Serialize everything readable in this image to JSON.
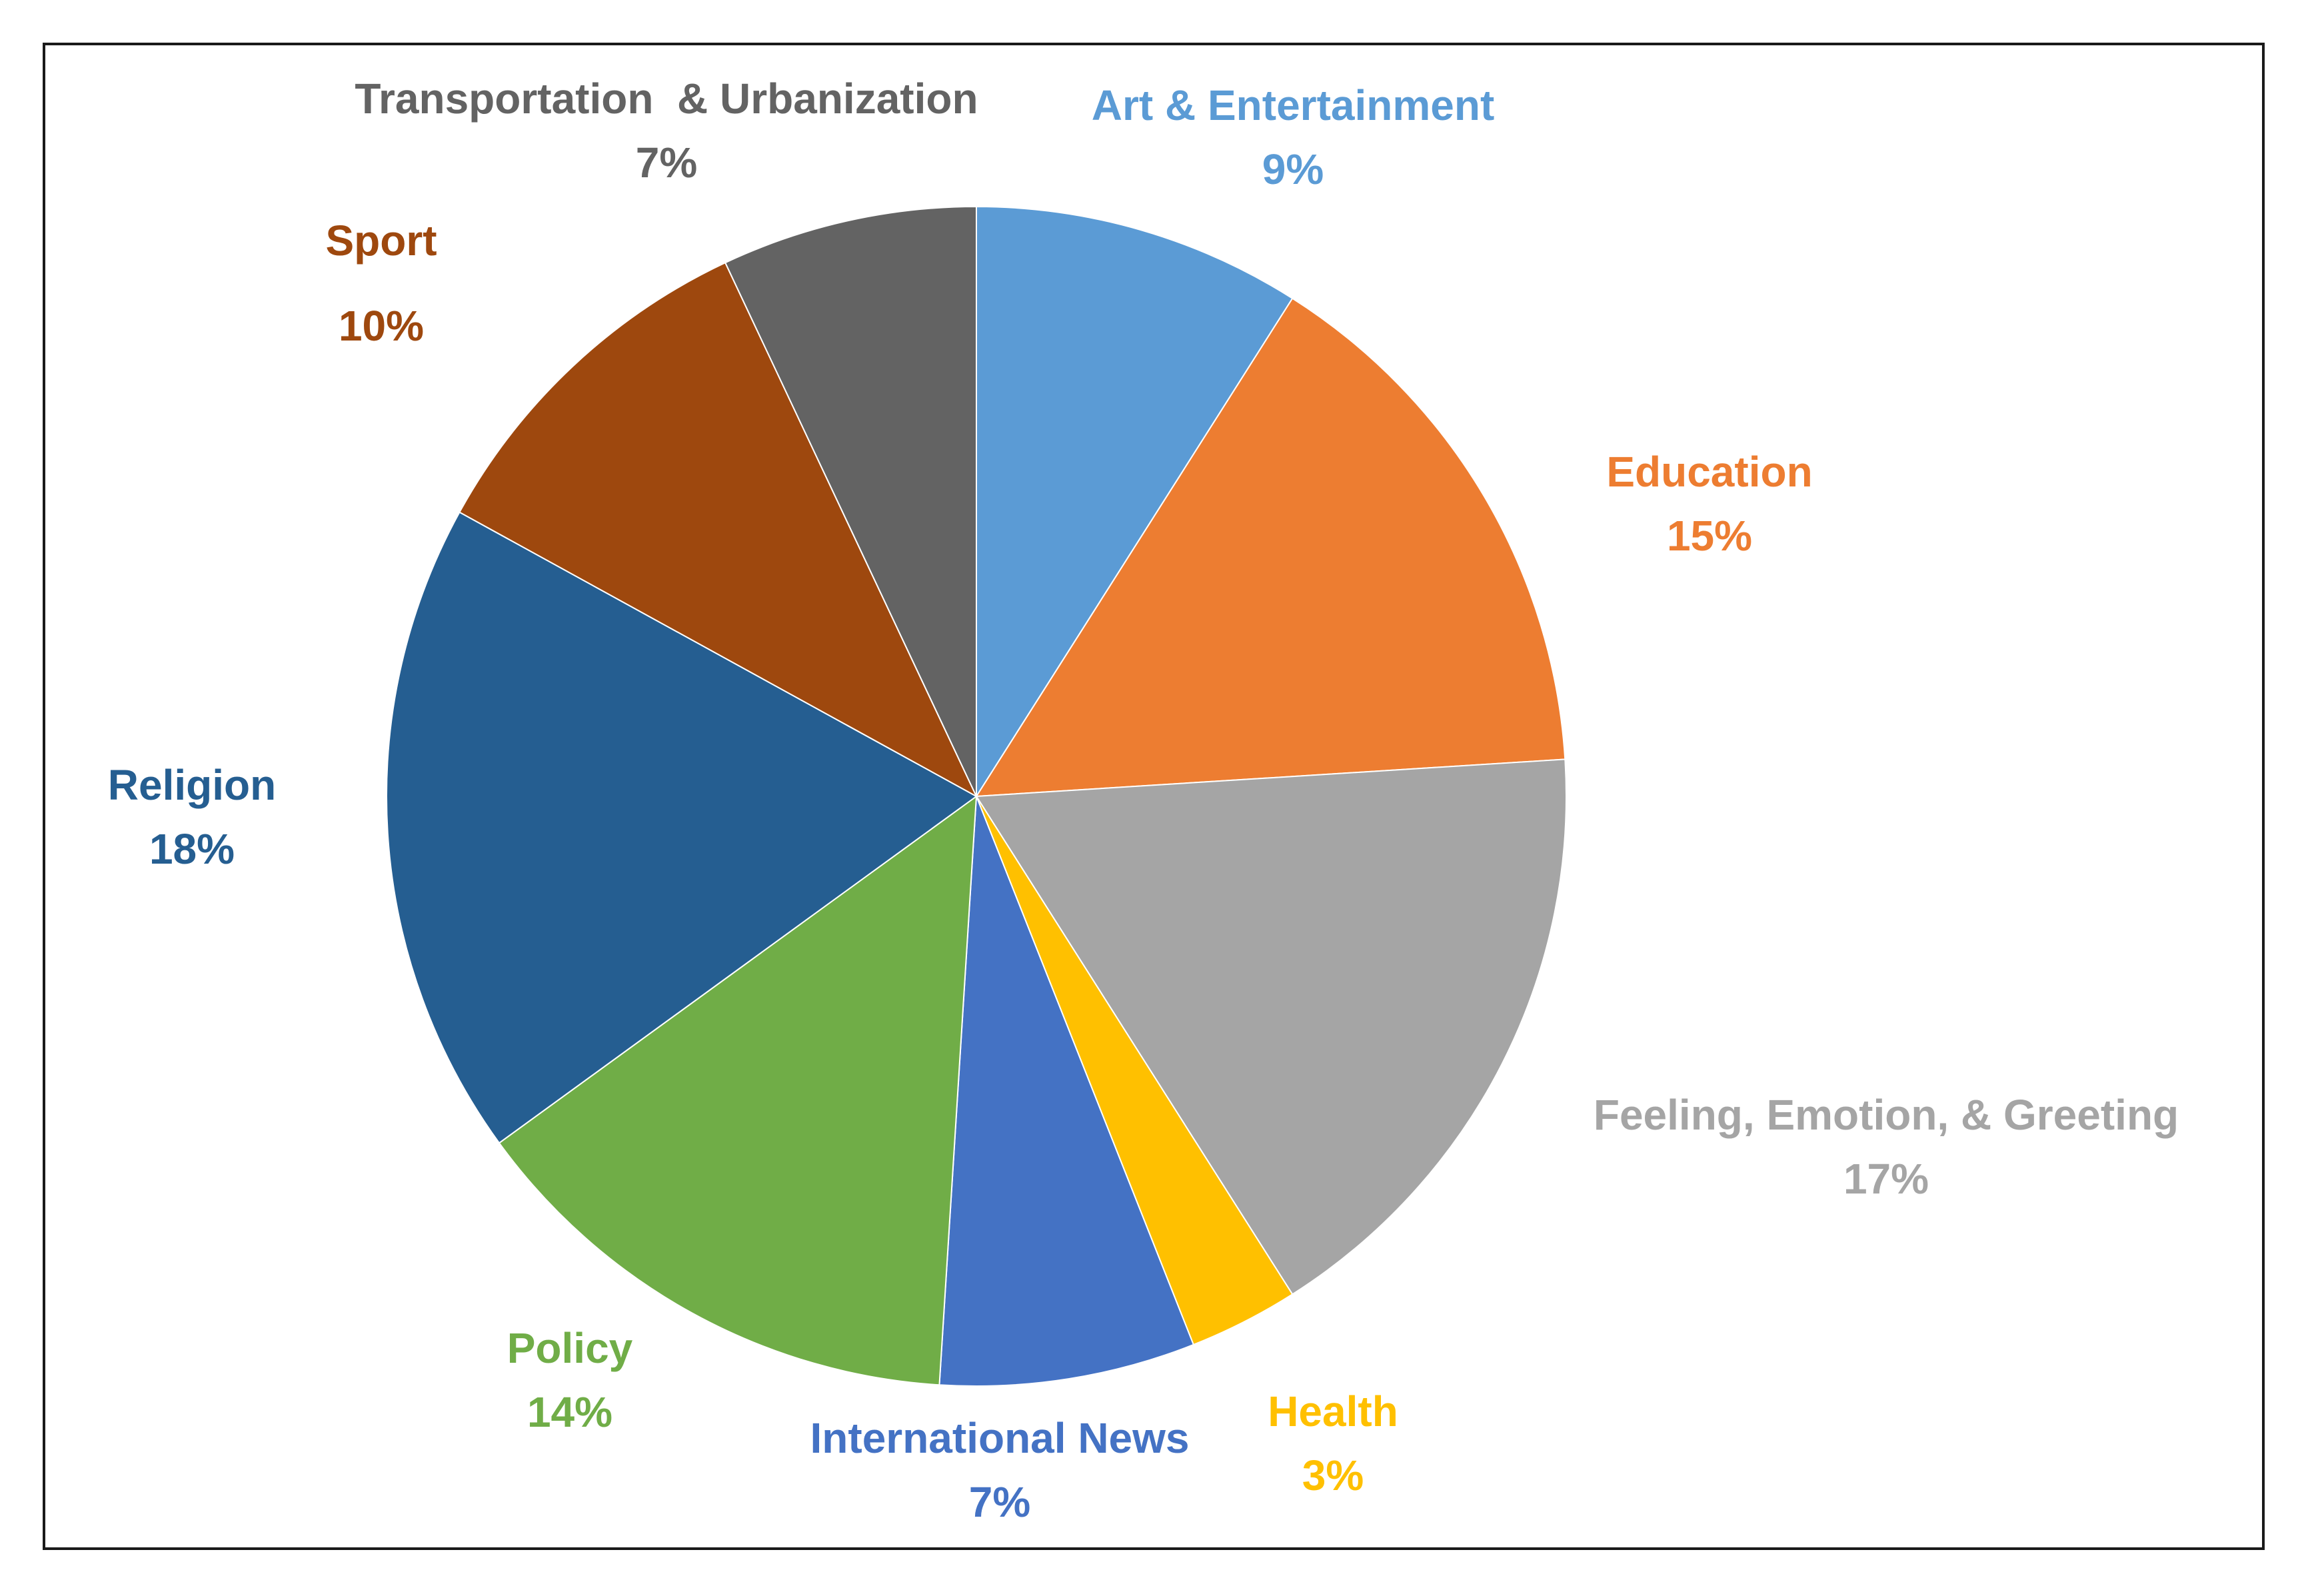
{
  "chart_data": {
    "type": "pie",
    "title": "",
    "start_angle_deg": 0,
    "direction": "clockwise",
    "slices": [
      {
        "label": "Art & Entertainment",
        "value": 9,
        "value_label": "9%",
        "color": "#5B9BD5"
      },
      {
        "label": "Education",
        "value": 15,
        "value_label": "15%",
        "color": "#ED7D31"
      },
      {
        "label": "Feeling, Emotion, & Greeting",
        "value": 17,
        "value_label": "17%",
        "color": "#A5A5A5"
      },
      {
        "label": "Health",
        "value": 3,
        "value_label": "3%",
        "color": "#FFC000"
      },
      {
        "label": "International News",
        "value": 7,
        "value_label": "7%",
        "color": "#4472C4"
      },
      {
        "label": "Policy",
        "value": 14,
        "value_label": "14%",
        "color": "#70AD47"
      },
      {
        "label": "Religion",
        "value": 18,
        "value_label": "18%",
        "color": "#255E91"
      },
      {
        "label": "Sport",
        "value": 10,
        "value_label": "10%",
        "color": "#9E480E"
      },
      {
        "label": "Transportation  & Urbanization",
        "value": 7,
        "value_label": "7%",
        "color": "#636363"
      }
    ],
    "legend": "none",
    "label_color_mode": "matches-slice"
  }
}
